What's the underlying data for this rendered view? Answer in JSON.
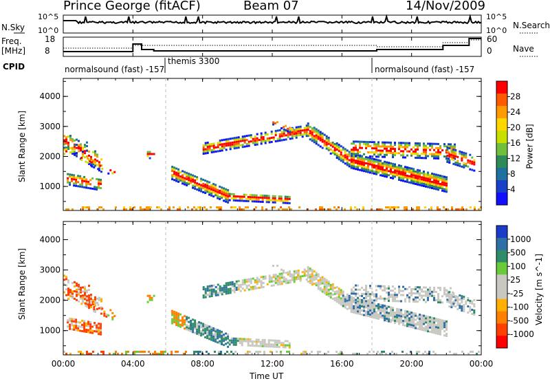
{
  "header": {
    "station": "Prince George (fitACF)",
    "beam": "Beam 07",
    "date": "14/Nov/2009"
  },
  "top_panels": {
    "nsky_label": "N.Sky",
    "nsky_ticks": [
      "10^5",
      "10^0"
    ],
    "nsearch_label": "N.Search",
    "nsearch_ticks": [
      "10^5",
      "10^0"
    ],
    "freq_label_1": "Freq.",
    "freq_label_2": "[MHz]",
    "freq_ticks": [
      "18",
      "8"
    ],
    "nave_label": "Nave",
    "nave_ticks": [
      "60",
      "0"
    ],
    "cpid_label": "CPID",
    "cpid_segments": [
      "normalsound (fast) -157",
      "themis 3300",
      "normalsound (fast) -157"
    ]
  },
  "chart_data": [
    {
      "type": "heatmap",
      "panel": "power",
      "ylabel": "Slant Range [km]",
      "yticks": [
        "4000",
        "3000",
        "2000",
        "1000"
      ],
      "ylim": [
        200,
        4600
      ],
      "xlim_hours": [
        0,
        24
      ],
      "colorbar_label": "Power [dB]",
      "colorbar_ticks": [
        "28",
        "24",
        "20",
        "16",
        "12",
        "8",
        "4"
      ],
      "colorbar_colors": [
        "#ff0000",
        "#ff5a00",
        "#ff9a00",
        "#ffd700",
        "#c8e000",
        "#6fbf3c",
        "#2e8b57",
        "#1f6f9f",
        "#1840c8",
        "#1010ff"
      ]
    },
    {
      "type": "heatmap",
      "panel": "velocity",
      "ylabel": "Slant Range [km]",
      "yticks": [
        "4000",
        "3000",
        "2000",
        "1000"
      ],
      "ylim": [
        200,
        4600
      ],
      "xlim_hours": [
        0,
        24
      ],
      "colorbar_label": "Velocity [m s^-1]",
      "colorbar_ticks": [
        "1000",
        "500",
        "100",
        "25",
        "-25",
        "-100",
        "-500",
        "-1000"
      ],
      "colorbar_colors": [
        "#1a3cc8",
        "#2f6fa8",
        "#2f8c6a",
        "#6acb3a",
        "#c8c8c0",
        "#c8c8c0",
        "#ffb000",
        "#ff8000",
        "#ff4000",
        "#ff0000"
      ]
    }
  ],
  "xaxis": {
    "ticks": [
      "00:00",
      "04:00",
      "08:00",
      "12:00",
      "16:00",
      "20:00",
      "00:00"
    ],
    "label": "Time UT"
  }
}
